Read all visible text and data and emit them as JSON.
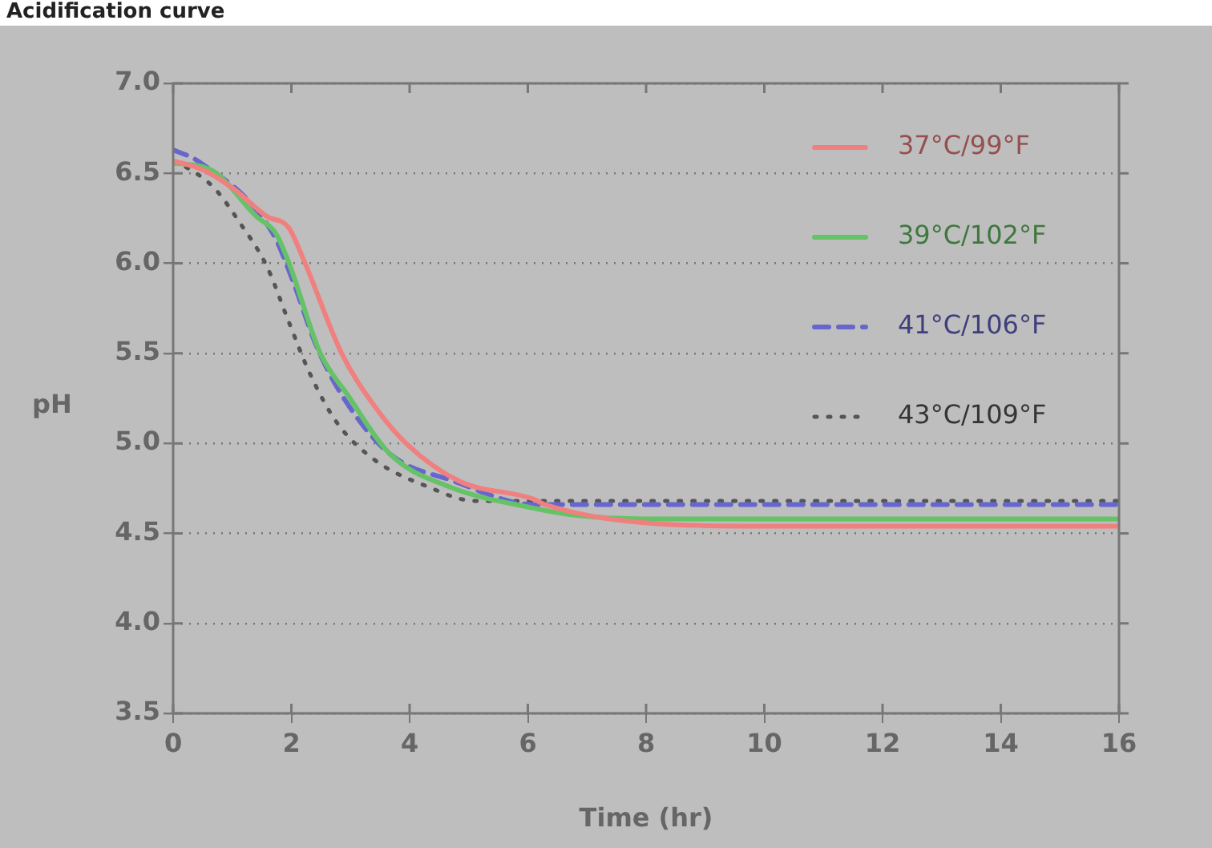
{
  "chart_data": {
    "type": "line",
    "title": "Acidification curve",
    "xlabel": "Time (hr)",
    "ylabel": "pH",
    "xlim": [
      0,
      16
    ],
    "xticks": [
      0,
      2,
      4,
      6,
      8,
      10,
      12,
      14,
      16
    ],
    "ylim": [
      3.5,
      7.0
    ],
    "yticks": [
      3.5,
      {
        "value": 4,
        "label": "4.0"
      },
      4.5,
      {
        "value": 5,
        "label": "5.0"
      },
      5.5,
      {
        "value": 6,
        "label": "6.0"
      },
      6.5,
      {
        "value": 7,
        "label": "7.0"
      }
    ],
    "grid": "y",
    "legend": "top right",
    "marker": "none",
    "series": [
      {
        "name": "37°C/99°F",
        "color": "#f08080",
        "line_style": "solid",
        "x": [
          0,
          0.5,
          1.0,
          1.59,
          1.95,
          2.22,
          2.85,
          3.4,
          3.94,
          4.84,
          6.1,
          6.29,
          8.37,
          10,
          12,
          14,
          16
        ],
        "values": [
          6.57,
          6.52,
          6.42,
          6.26,
          6.2,
          6.01,
          5.5,
          5.21,
          5.0,
          4.79,
          4.69,
          4.66,
          4.55,
          4.54,
          4.54,
          4.54,
          4.54
        ]
      },
      {
        "name": "39°C/102°F",
        "color": "#66c266",
        "line_style": "solid",
        "x": [
          0,
          0.69,
          1.41,
          1.73,
          1.95,
          2.49,
          2.95,
          3.67,
          4.66,
          6.1,
          6.83,
          8,
          10,
          12,
          14,
          16
        ],
        "values": [
          6.56,
          6.51,
          6.26,
          6.17,
          6.01,
          5.5,
          5.27,
          4.94,
          4.76,
          4.64,
          4.6,
          4.58,
          4.58,
          4.58,
          4.58,
          4.58
        ]
      },
      {
        "name": "41°C/106°F",
        "color": "#6666cc",
        "line_style": "dashed",
        "x": [
          0,
          0.41,
          1.68,
          2.04,
          2.4,
          2.85,
          3.67,
          4.75,
          6.1,
          6.6,
          8,
          10,
          12,
          14,
          16
        ],
        "values": [
          6.63,
          6.57,
          6.17,
          5.89,
          5.56,
          5.27,
          4.94,
          4.79,
          4.66,
          4.66,
          4.66,
          4.66,
          4.66,
          4.66,
          4.66
        ]
      },
      {
        "name": "43°C/109°F",
        "color": "#555555",
        "line_style": "dotted",
        "x": [
          0,
          0.24,
          0.69,
          1.14,
          1.59,
          1.95,
          2.31,
          2.76,
          3.4,
          4.3,
          5.11,
          6,
          8,
          10,
          12,
          14,
          16
        ],
        "values": [
          6.56,
          6.53,
          6.42,
          6.22,
          5.98,
          5.68,
          5.39,
          5.12,
          4.91,
          4.76,
          4.68,
          4.68,
          4.68,
          4.68,
          4.68,
          4.68,
          4.68
        ]
      }
    ]
  }
}
